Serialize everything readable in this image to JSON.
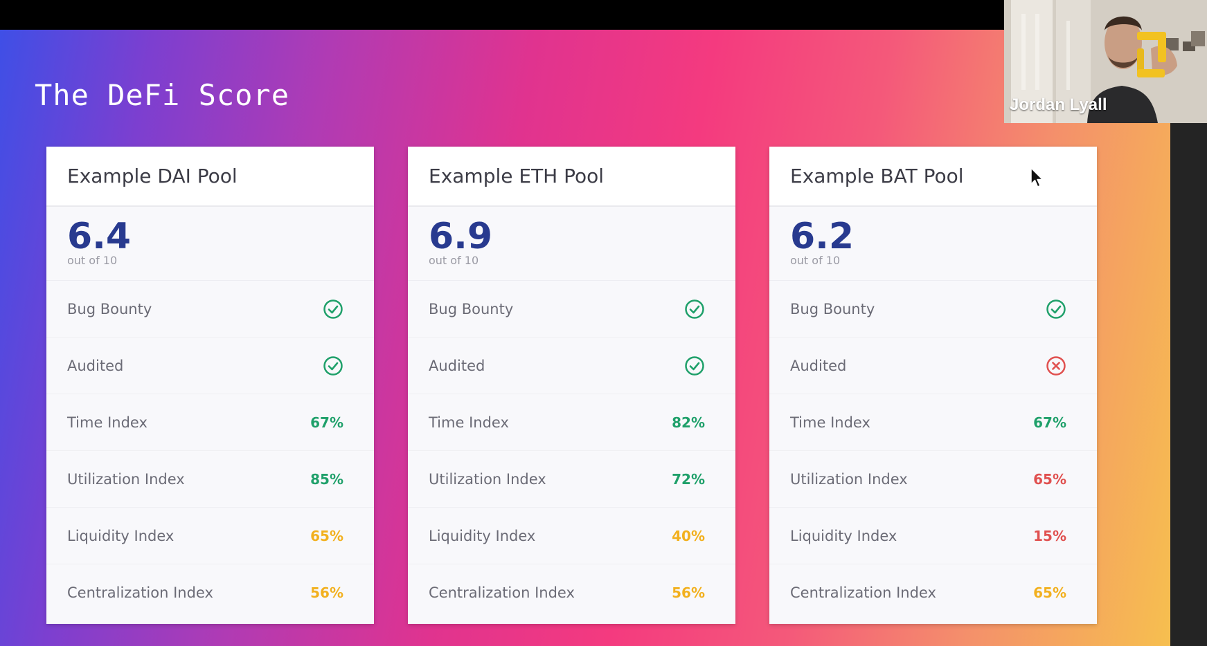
{
  "slide": {
    "title": "The DeFi Score"
  },
  "colors": {
    "good": "#1fa06a",
    "warn": "#f2b01e",
    "bad": "#e0504f",
    "score": "#283a8f"
  },
  "pools": [
    {
      "title": "Example DAI Pool",
      "score": "6.4",
      "score_sub": "out of 10",
      "metrics": [
        {
          "label": "Bug Bounty",
          "icon": "check-circle-icon",
          "status": "good"
        },
        {
          "label": "Audited",
          "icon": "check-circle-icon",
          "status": "good"
        },
        {
          "label": "Time Index",
          "value": "67%",
          "status": "good"
        },
        {
          "label": "Utilization Index",
          "value": "85%",
          "status": "good"
        },
        {
          "label": "Liquidity Index",
          "value": "65%",
          "status": "warn"
        },
        {
          "label": "Centralization Index",
          "value": "56%",
          "status": "warn"
        }
      ]
    },
    {
      "title": "Example ETH Pool",
      "score": "6.9",
      "score_sub": "out of 10",
      "metrics": [
        {
          "label": "Bug Bounty",
          "icon": "check-circle-icon",
          "status": "good"
        },
        {
          "label": "Audited",
          "icon": "check-circle-icon",
          "status": "good"
        },
        {
          "label": "Time Index",
          "value": "82%",
          "status": "good"
        },
        {
          "label": "Utilization Index",
          "value": "72%",
          "status": "good"
        },
        {
          "label": "Liquidity Index",
          "value": "40%",
          "status": "warn"
        },
        {
          "label": "Centralization Index",
          "value": "56%",
          "status": "warn"
        }
      ]
    },
    {
      "title": "Example BAT Pool",
      "score": "6.2",
      "score_sub": "out of 10",
      "metrics": [
        {
          "label": "Bug Bounty",
          "icon": "check-circle-icon",
          "status": "good"
        },
        {
          "label": "Audited",
          "icon": "x-circle-icon",
          "status": "bad"
        },
        {
          "label": "Time Index",
          "value": "67%",
          "status": "good"
        },
        {
          "label": "Utilization Index",
          "value": "65%",
          "status": "bad"
        },
        {
          "label": "Liquidity Index",
          "value": "15%",
          "status": "bad"
        },
        {
          "label": "Centralization Index",
          "value": "65%",
          "status": "warn"
        }
      ]
    }
  ],
  "webcam": {
    "participant_name": "Jordan Lyall"
  }
}
